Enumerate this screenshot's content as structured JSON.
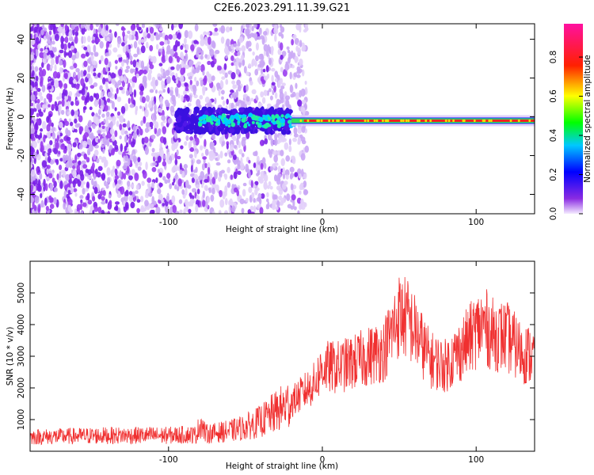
{
  "title": "C2E6.2023.291.11.39.G21",
  "colors": {
    "snr_line": "#f03030",
    "background": "#ffffff",
    "axis": "#000000"
  },
  "chart_data": [
    {
      "type": "heatmap",
      "xlabel": "Height of straight line (km)",
      "ylabel": "Frequency (Hz)",
      "xlim": [
        -190,
        138
      ],
      "ylim": [
        -50,
        48
      ],
      "xticks": [
        -100,
        0,
        100
      ],
      "yticks": [
        -40,
        -20,
        0,
        20,
        40
      ],
      "colorbar": {
        "label": "Normalized spectral amplitude",
        "range": [
          0,
          0.97
        ],
        "ticks": [
          0.0,
          0.2,
          0.4,
          0.6,
          0.8
        ],
        "colormap": "rainbow (purple-blue-cyan-green-yellow-red-magenta)"
      },
      "features": {
        "noise_region_x": [
          -190,
          -20
        ],
        "signal_line_x": [
          -20,
          138
        ],
        "signal_frequency_hz": -2
      }
    },
    {
      "type": "line",
      "xlabel": "Height of straight line (km)",
      "ylabel": "SNR (10 * v/v)",
      "xlim": [
        -190,
        138
      ],
      "ylim": [
        0,
        6000
      ],
      "xticks": [
        -100,
        0,
        100
      ],
      "yticks": [
        1000,
        2000,
        3000,
        4000,
        5000
      ],
      "series": [
        {
          "x": [
            -190,
            -170,
            -150,
            -130,
            -110,
            -100,
            -90,
            -82,
            -79,
            -76,
            -70,
            -60,
            -50,
            -40,
            -30,
            -20,
            -10,
            -5,
            0,
            10,
            20,
            30,
            40,
            50,
            55,
            60,
            70,
            80,
            90,
            100,
            105,
            110,
            120,
            130,
            138
          ],
          "y": [
            450,
            470,
            490,
            500,
            500,
            500,
            520,
            520,
            900,
            550,
            580,
            640,
            760,
            950,
            1250,
            1550,
            1950,
            2150,
            2650,
            2650,
            2800,
            3000,
            3200,
            4300,
            4200,
            3800,
            2900,
            2700,
            3200,
            3800,
            4000,
            3700,
            3600,
            3100,
            3000
          ]
        }
      ]
    }
  ]
}
